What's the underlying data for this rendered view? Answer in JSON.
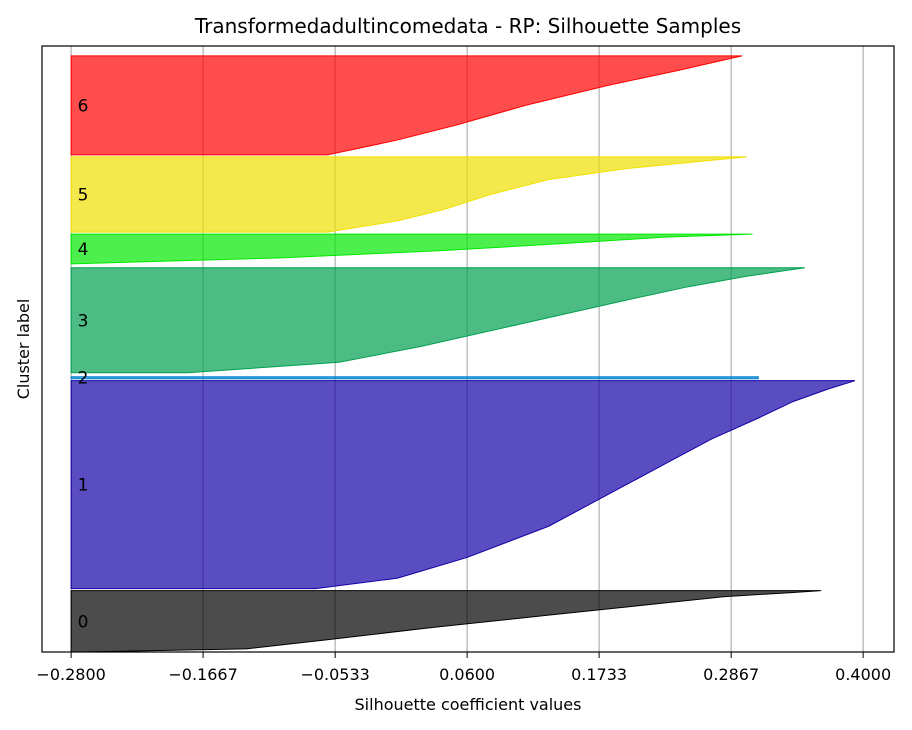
{
  "chart_data": {
    "type": "area",
    "title": "Transformedadultincomedata - RP: Silhouette Samples",
    "xlabel": "Silhouette coefficient values",
    "ylabel": "Cluster label",
    "xlim": [
      -0.305,
      0.4265
    ],
    "x_ticks": [
      -0.28,
      -0.1667,
      -0.0533,
      0.06,
      0.1733,
      0.2867,
      0.4
    ],
    "x_tick_labels": [
      "−0.2800",
      "−0.1667",
      "−0.0533",
      "0.0600",
      "0.1733",
      "0.2867",
      "0.4000"
    ],
    "grid": "vertical",
    "clusters": [
      {
        "label": "0",
        "color": "#000000",
        "start": 0,
        "end": 62,
        "profile": [
          [
            0.0,
            -0.27
          ],
          [
            0.05,
            -0.13
          ],
          [
            0.2,
            -0.06
          ],
          [
            0.4,
            0.03
          ],
          [
            0.6,
            0.13
          ],
          [
            0.8,
            0.23
          ],
          [
            0.9,
            0.28
          ],
          [
            0.97,
            0.34
          ],
          [
            1.0,
            0.364
          ]
        ]
      },
      {
        "label": "1",
        "color": "#1400a6",
        "start": 64,
        "end": 274,
        "profile": [
          [
            0.0,
            -0.07
          ],
          [
            0.05,
            0.0
          ],
          [
            0.15,
            0.06
          ],
          [
            0.3,
            0.13
          ],
          [
            0.45,
            0.18
          ],
          [
            0.6,
            0.23
          ],
          [
            0.72,
            0.27
          ],
          [
            0.82,
            0.31
          ],
          [
            0.9,
            0.34
          ],
          [
            0.96,
            0.37
          ],
          [
            1.0,
            0.393
          ]
        ]
      },
      {
        "label": "2",
        "color": "#0080d0",
        "start": 276,
        "end": 278,
        "profile": [
          [
            0.0,
            0.31
          ],
          [
            1.0,
            0.31
          ]
        ]
      },
      {
        "label": "3",
        "color": "#00a050",
        "start": 282,
        "end": 388,
        "profile": [
          [
            0.0,
            -0.18
          ],
          [
            0.1,
            -0.05
          ],
          [
            0.25,
            0.02
          ],
          [
            0.4,
            0.08
          ],
          [
            0.55,
            0.14
          ],
          [
            0.7,
            0.2
          ],
          [
            0.82,
            0.25
          ],
          [
            0.92,
            0.3
          ],
          [
            1.0,
            0.35
          ]
        ]
      },
      {
        "label": "4",
        "color": "#00e800",
        "start": 392,
        "end": 422,
        "profile": [
          [
            0.0,
            -0.28
          ],
          [
            0.2,
            -0.1
          ],
          [
            0.45,
            0.04
          ],
          [
            0.7,
            0.15
          ],
          [
            0.9,
            0.23
          ],
          [
            1.0,
            0.305
          ]
        ]
      },
      {
        "label": "5",
        "color": "#f0e000",
        "start": 424,
        "end": 500,
        "profile": [
          [
            0.0,
            -0.06
          ],
          [
            0.15,
            0.0
          ],
          [
            0.3,
            0.04
          ],
          [
            0.5,
            0.08
          ],
          [
            0.7,
            0.13
          ],
          [
            0.85,
            0.2
          ],
          [
            1.0,
            0.3
          ]
        ]
      },
      {
        "label": "6",
        "color": "#ff0000",
        "start": 502,
        "end": 602,
        "profile": [
          [
            0.0,
            -0.06
          ],
          [
            0.15,
            0.0
          ],
          [
            0.3,
            0.05
          ],
          [
            0.5,
            0.11
          ],
          [
            0.7,
            0.18
          ],
          [
            0.85,
            0.24
          ],
          [
            1.0,
            0.296
          ]
        ]
      }
    ]
  }
}
